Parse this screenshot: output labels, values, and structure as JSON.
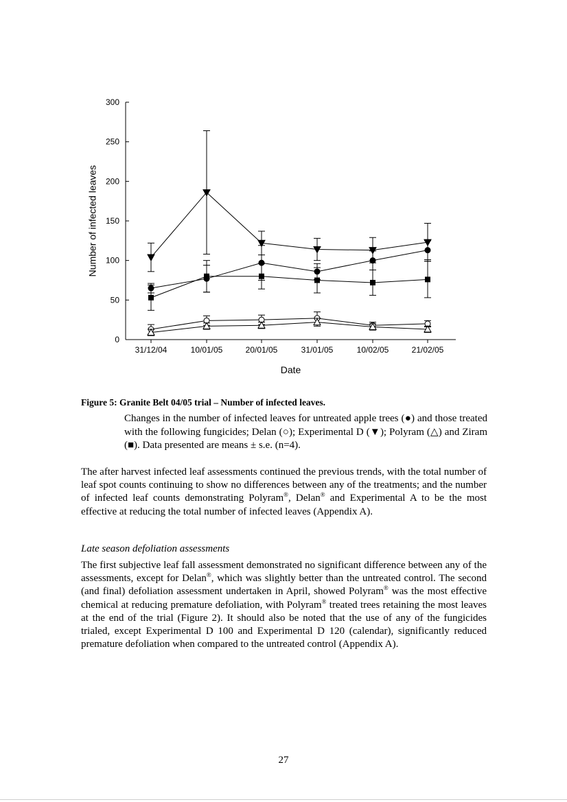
{
  "chart_data": {
    "type": "line",
    "xlabel": "Date",
    "ylabel": "Number of infected leaves",
    "ylim": [
      0,
      300
    ],
    "yticks": [
      0,
      50,
      100,
      150,
      200,
      250,
      300
    ],
    "categories": [
      "31/12/04",
      "10/01/05",
      "20/01/05",
      "31/01/05",
      "10/02/05",
      "21/02/05"
    ],
    "series": [
      {
        "name": "Untreated",
        "marker": "filled-circle",
        "values": [
          65,
          77,
          97,
          86,
          100,
          113
        ],
        "se": [
          6,
          17,
          22,
          10,
          12,
          12
        ]
      },
      {
        "name": "Delan",
        "marker": "open-circle",
        "values": [
          13,
          24,
          25,
          27,
          18,
          20
        ],
        "se": [
          6,
          6,
          6,
          8,
          4,
          4
        ]
      },
      {
        "name": "Experimental D",
        "marker": "filled-triangle-down",
        "values": [
          104,
          186,
          122,
          114,
          113,
          123
        ],
        "se": [
          18,
          78,
          15,
          14,
          16,
          24
        ]
      },
      {
        "name": "Polyram",
        "marker": "open-triangle-up",
        "values": [
          9,
          17,
          18,
          22,
          16,
          13
        ],
        "se": [
          4,
          4,
          4,
          5,
          4,
          4
        ]
      },
      {
        "name": "Ziram",
        "marker": "filled-square",
        "values": [
          53,
          80,
          80,
          75,
          72,
          76
        ],
        "se": [
          16,
          20,
          16,
          16,
          16,
          23
        ]
      }
    ]
  },
  "caption": {
    "title": "Figure 5:  Granite Belt 04/05 trial – Number of infected leaves.",
    "body": "Changes in the number of infected leaves for untreated apple trees (●) and those treated with the following fungicides; Delan (○); Experimental D (▼); Polyram (△) and Ziram (■).  Data presented are means ± s.e. (n=4)."
  },
  "para1": {
    "a": "The after harvest infected leaf assessments continued the previous trends, with the total number of leaf spot counts continuing to show no differences between any of the treatments; and the number of infected leaf counts demonstrating Polyram",
    "b": ", Delan",
    "c": " and Experimental A to be the most effective at reducing the total number of infected leaves (Appendix A)."
  },
  "subheading": "Late season defoliation assessments",
  "para2": {
    "a": "The first subjective leaf fall assessment demonstrated no significant difference between any of the assessments, except for Delan",
    "b": ", which was slightly better than the untreated control.  The second (and final) defoliation assessment undertaken in April, showed Polyram",
    "c": " was the most effective chemical at reducing premature defoliation, with Polyram",
    "d": " treated trees retaining the most leaves at the end of the trial (Figure 2).  It should also be noted that the use of any of the fungicides trialed, except Experimental D 100 and Experimental D 120 (calendar), significantly reduced premature defoliation when compared to the untreated control (Appendix A)."
  },
  "registered_mark": "®",
  "page_number": "27"
}
